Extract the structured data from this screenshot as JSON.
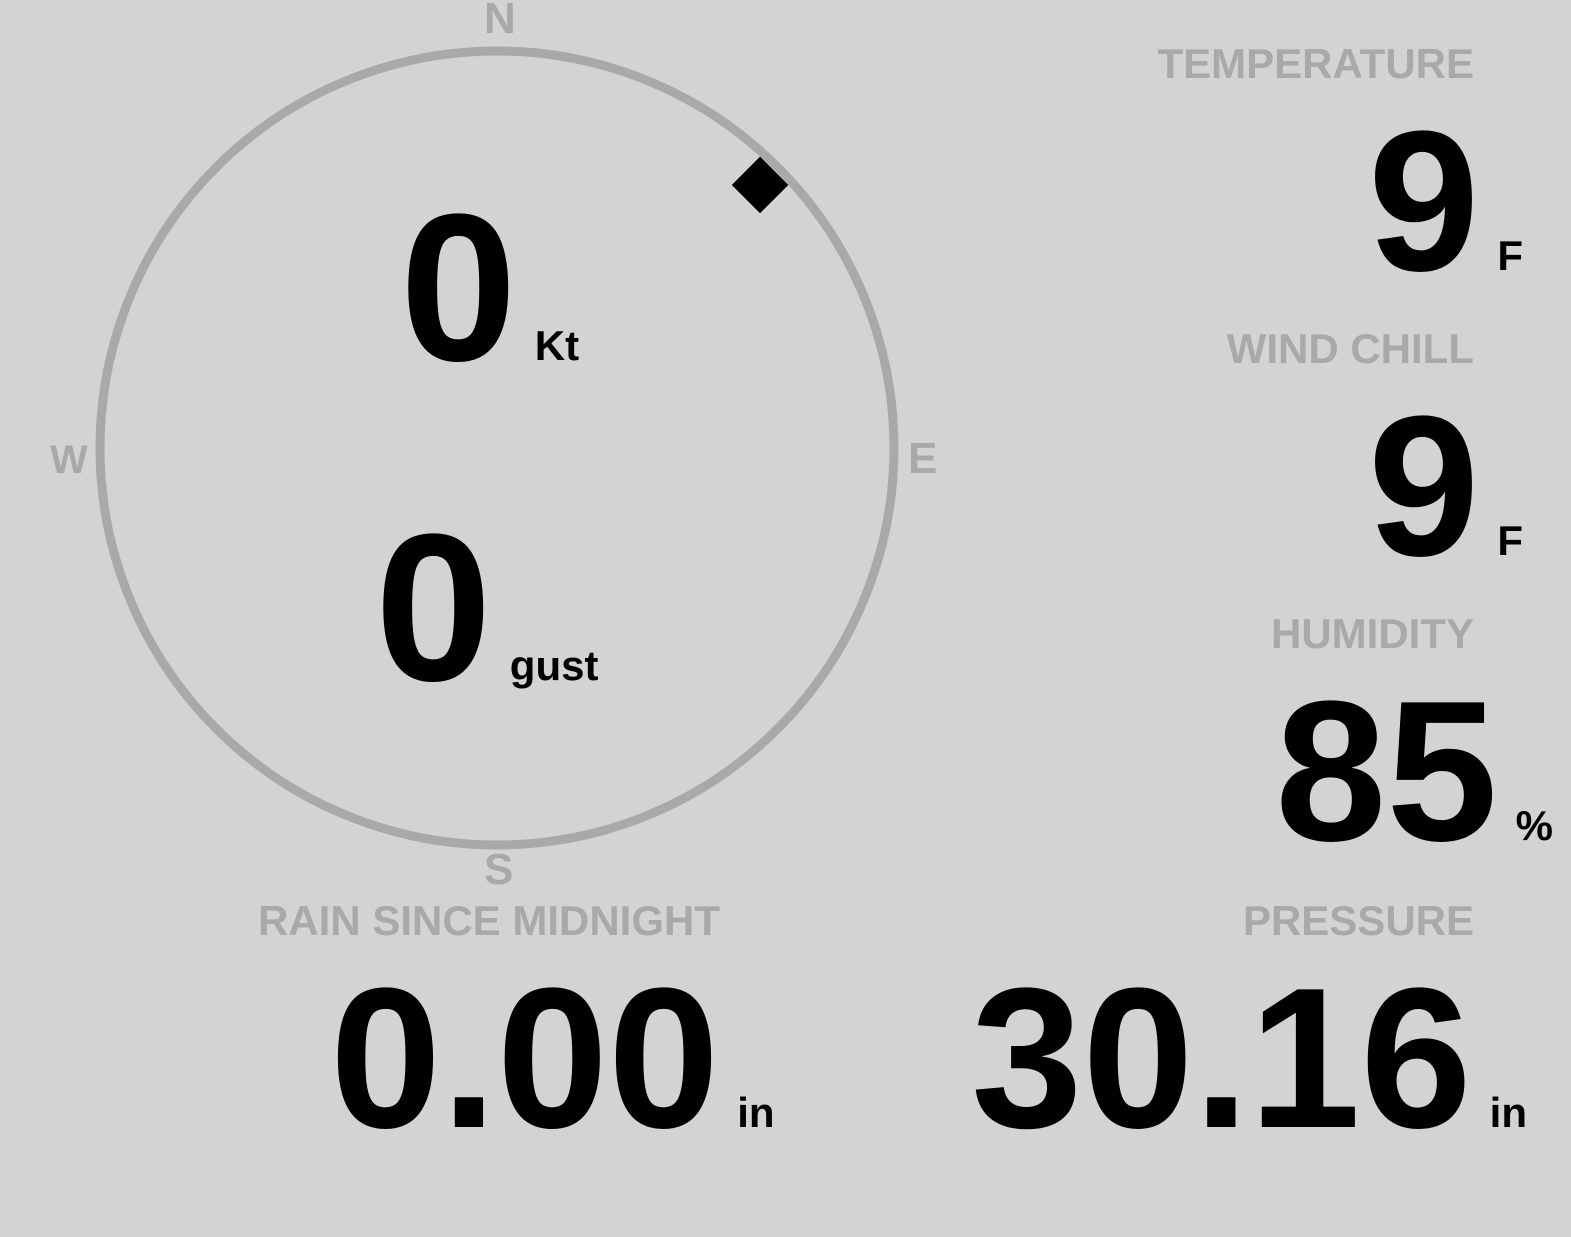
{
  "compass": {
    "north": "N",
    "south": "S",
    "east": "E",
    "west": "W",
    "wind_direction_deg": 45
  },
  "wind": {
    "speed": "0",
    "speed_unit": "Kt",
    "gust": "0",
    "gust_unit": "gust"
  },
  "temperature": {
    "label": "TEMPERATURE",
    "value": "9",
    "unit": "F"
  },
  "wind_chill": {
    "label": "WIND CHILL",
    "value": "9",
    "unit": "F"
  },
  "humidity": {
    "label": "HUMIDITY",
    "value": "85",
    "unit": "%"
  },
  "rain": {
    "label": "RAIN SINCE MIDNIGHT",
    "value": "0.00",
    "unit": "in"
  },
  "pressure": {
    "label": "PRESSURE",
    "value": "30.16",
    "unit": "in"
  },
  "colors": {
    "background": "#d3d3d3",
    "label": "#a9a9a9",
    "value": "#000000"
  }
}
